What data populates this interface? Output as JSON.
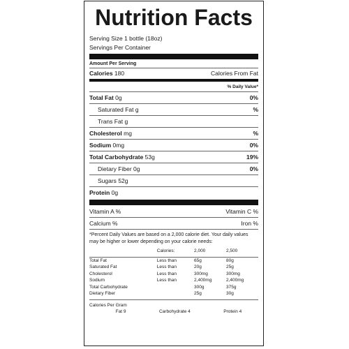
{
  "title": "Nutrition Facts",
  "serving_size": "Serving Size  1 bottle (18oz)",
  "servings_per_container": "Servings Per Container",
  "amount_per_serving": "Amount Per Serving",
  "calories_label": "Calories",
  "calories_value": "180",
  "calories_from_fat": "Calories From Fat",
  "daily_value_header": "% Daily Value*",
  "nutrients": [
    {
      "label": "Total Fat",
      "amount": "0g",
      "dv": "0%"
    },
    {
      "label": "Saturated Fat",
      "amount": "g",
      "dv": "%"
    },
    {
      "label": "Trans Fat",
      "amount": "g",
      "dv": ""
    },
    {
      "label": "Cholesterol",
      "amount": "mg",
      "dv": "%"
    },
    {
      "label": "Sodium",
      "amount": "0mg",
      "dv": "0%"
    },
    {
      "label": "Total Carbohydrate",
      "amount": "53g",
      "dv": "19%"
    },
    {
      "label": "Dietary Fiber",
      "amount": "0g",
      "dv": "0%"
    },
    {
      "label": "Sugars",
      "amount": "52g",
      "dv": ""
    },
    {
      "label": "Protein",
      "amount": "0g",
      "dv": ""
    }
  ],
  "vitamins": {
    "vitamin_a": "Vitamin A  %",
    "vitamin_c": "Vitamin C  %",
    "calcium": "Calcium  %",
    "iron": "Iron  %"
  },
  "footnote": "*Percent Daily Values are based on a 2,000 calorie diet. Your daily values may be higher or lower depending on your calorie needs:",
  "footer_table": {
    "header": [
      "",
      "Calories:",
      "2,000",
      "2,500"
    ],
    "rows": [
      [
        "Total Fat",
        "Less than",
        "65g",
        "80g"
      ],
      [
        "Saturated Fat",
        "Less than",
        "20g",
        "25g"
      ],
      [
        "Cholesterol",
        "Less than",
        "300mg",
        "300mg"
      ],
      [
        "Sodium",
        "Less than",
        "2,400mg",
        "2,400mg"
      ],
      [
        "Total Carbohydrate",
        "",
        "300g",
        "375g"
      ],
      [
        "Dietary Fiber",
        "",
        "25g",
        "30g"
      ]
    ]
  },
  "calories_per_gram": {
    "label": "Calories Per Gram",
    "fat": "Fat 9",
    "carbohydrate": "Carbohydrate 4",
    "protein": "Protein 4"
  }
}
